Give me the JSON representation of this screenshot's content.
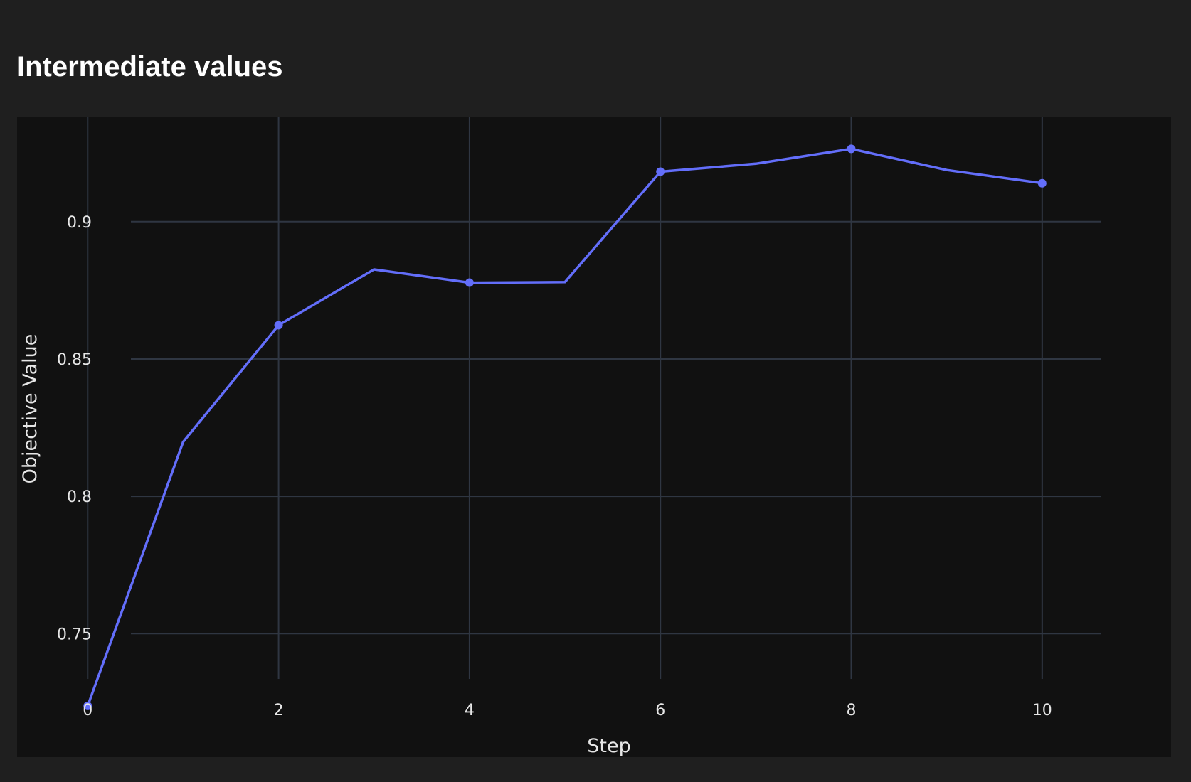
{
  "page": {
    "title": "Intermediate values"
  },
  "colors": {
    "page_background": "#1f1f1f",
    "plot_background": "#111111",
    "grid": "#2f3642",
    "series": "#636efa",
    "text": "#e6e6e6",
    "title": "#ffffff"
  },
  "chart_data": {
    "type": "line",
    "title": "Intermediate values",
    "xlabel": "Step",
    "ylabel": "Objective Value",
    "xlim": [
      -0.74,
      10.62
    ],
    "ylim": [
      0.7115,
      0.938
    ],
    "xticks": [
      0,
      2,
      4,
      6,
      8,
      10
    ],
    "xtick_labels": [
      "0",
      "2",
      "4",
      "6",
      "8",
      "10"
    ],
    "yticks": [
      0.75,
      0.8,
      0.85,
      0.9
    ],
    "ytick_labels": [
      "0.75",
      "0.8",
      "0.85",
      "0.9"
    ],
    "grid": true,
    "legend": false,
    "series": [
      {
        "x": [
          0,
          1,
          2,
          3,
          4,
          5,
          6,
          7,
          8,
          9,
          10
        ],
        "values": [
          0.7237,
          0.8198,
          0.8623,
          0.8826,
          0.8778,
          0.878,
          0.9182,
          0.9211,
          0.9265,
          0.9188,
          0.914
        ],
        "markers_at": [
          0,
          2,
          4,
          6,
          8,
          10
        ]
      }
    ]
  }
}
